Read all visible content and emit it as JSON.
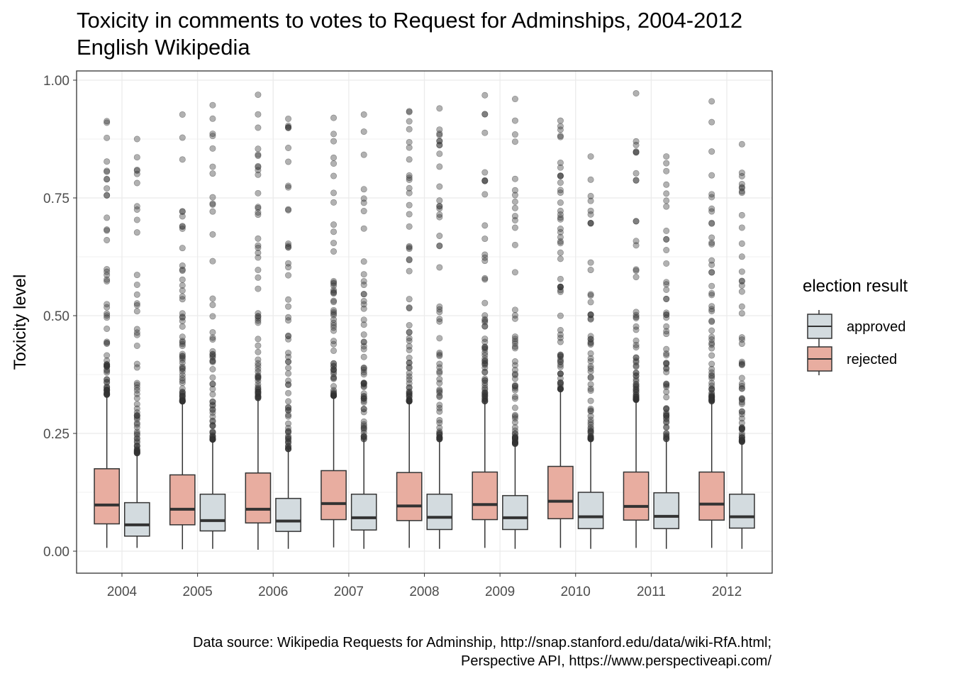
{
  "title_line1": "Toxicity in comments to votes to Request for Adminships, 2004-2012",
  "title_line2": "English Wikipedia",
  "caption_line1": "Data source: Wikipedia Requests for Adminship, http://snap.stanford.edu/data/wiki-RfA.html;",
  "caption_line2": "Perspective API, https://www.perspectiveapi.com/",
  "colors": {
    "approved": "#d3dbdf",
    "rejected": "#e8ada0",
    "outlier": "#333333",
    "grid": "#ebebeb"
  },
  "chart_data": {
    "type": "boxplot",
    "ylabel": "Toxicity level",
    "xlabel": "",
    "ylim": [
      0,
      1
    ],
    "yticks": [
      "0.00",
      "0.25",
      "0.50",
      "0.75",
      "1.00"
    ],
    "ytick_values": [
      0,
      0.25,
      0.5,
      0.75,
      1.0
    ],
    "categories": [
      "2004",
      "2005",
      "2006",
      "2007",
      "2008",
      "2009",
      "2010",
      "2011",
      "2012"
    ],
    "legend": {
      "title": "election result",
      "entries": [
        "approved",
        "rejected"
      ],
      "position": "right"
    },
    "series": [
      {
        "name": "rejected",
        "stats": [
          {
            "low": 0.007,
            "q1": 0.058,
            "median": 0.098,
            "q3": 0.175,
            "high": 0.332,
            "max": 0.913
          },
          {
            "low": 0.004,
            "q1": 0.056,
            "median": 0.089,
            "q3": 0.162,
            "high": 0.318,
            "max": 0.927
          },
          {
            "low": 0.003,
            "q1": 0.06,
            "median": 0.089,
            "q3": 0.166,
            "high": 0.325,
            "max": 0.969
          },
          {
            "low": 0.008,
            "q1": 0.067,
            "median": 0.101,
            "q3": 0.171,
            "high": 0.33,
            "max": 0.92
          },
          {
            "low": 0.007,
            "q1": 0.065,
            "median": 0.096,
            "q3": 0.167,
            "high": 0.318,
            "max": 0.934
          },
          {
            "low": 0.007,
            "q1": 0.067,
            "median": 0.099,
            "q3": 0.168,
            "high": 0.318,
            "max": 0.968
          },
          {
            "low": 0.007,
            "q1": 0.069,
            "median": 0.106,
            "q3": 0.18,
            "high": 0.344,
            "max": 0.914
          },
          {
            "low": 0.007,
            "q1": 0.066,
            "median": 0.095,
            "q3": 0.168,
            "high": 0.321,
            "max": 0.972
          },
          {
            "low": 0.007,
            "q1": 0.066,
            "median": 0.1,
            "q3": 0.168,
            "high": 0.318,
            "max": 0.955
          }
        ]
      },
      {
        "name": "approved",
        "stats": [
          {
            "low": 0.007,
            "q1": 0.032,
            "median": 0.056,
            "q3": 0.103,
            "high": 0.208,
            "max": 0.875
          },
          {
            "low": 0.005,
            "q1": 0.043,
            "median": 0.065,
            "q3": 0.121,
            "high": 0.237,
            "max": 0.947
          },
          {
            "low": 0.005,
            "q1": 0.042,
            "median": 0.064,
            "q3": 0.112,
            "high": 0.217,
            "max": 0.918
          },
          {
            "low": 0.005,
            "q1": 0.045,
            "median": 0.071,
            "q3": 0.121,
            "high": 0.238,
            "max": 0.927
          },
          {
            "low": 0.005,
            "q1": 0.046,
            "median": 0.072,
            "q3": 0.121,
            "high": 0.238,
            "max": 0.94
          },
          {
            "low": 0.005,
            "q1": 0.046,
            "median": 0.071,
            "q3": 0.118,
            "high": 0.228,
            "max": 0.96
          },
          {
            "low": 0.005,
            "q1": 0.048,
            "median": 0.073,
            "q3": 0.125,
            "high": 0.238,
            "max": 0.838
          },
          {
            "low": 0.005,
            "q1": 0.048,
            "median": 0.074,
            "q3": 0.124,
            "high": 0.238,
            "max": 0.838
          },
          {
            "low": 0.005,
            "q1": 0.049,
            "median": 0.073,
            "q3": 0.121,
            "high": 0.232,
            "max": 0.864
          }
        ]
      }
    ]
  }
}
